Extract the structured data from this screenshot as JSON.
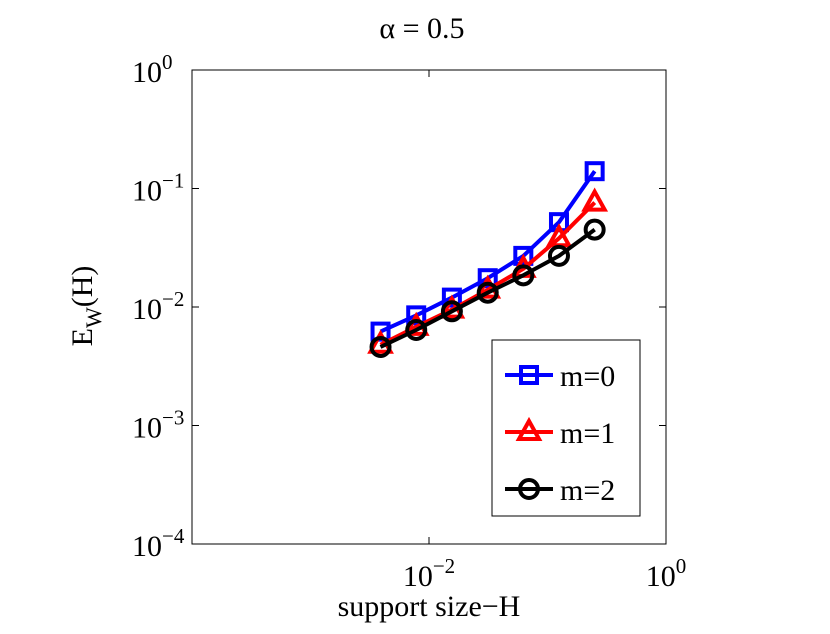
{
  "chart_data": {
    "type": "line",
    "title": "α = 0.5",
    "xlabel": "support size−H",
    "ylabel_base": "E",
    "ylabel_sub": "W",
    "ylabel_tail": "(H)",
    "xscale": "log",
    "yscale": "log",
    "xlim": [
      0.0001,
      1
    ],
    "ylim": [
      0.0001,
      1
    ],
    "x_ticks": [
      {
        "value": 0.01,
        "base": "10",
        "exp": "−2"
      },
      {
        "value": 1,
        "base": "10",
        "exp": "0"
      }
    ],
    "y_ticks": [
      {
        "value": 0.0001,
        "base": "10",
        "exp": "−4"
      },
      {
        "value": 0.001,
        "base": "10",
        "exp": "−3"
      },
      {
        "value": 0.01,
        "base": "10",
        "exp": "−2"
      },
      {
        "value": 0.1,
        "base": "10",
        "exp": "−1"
      },
      {
        "value": 1,
        "base": "10",
        "exp": "0"
      }
    ],
    "grid": false,
    "legend_position": "bottom-right",
    "x": [
      0.0039,
      0.0078,
      0.0156,
      0.0313,
      0.0625,
      0.125,
      0.25
    ],
    "series": [
      {
        "name": "m=0",
        "color": "#0000ff",
        "marker": "square",
        "values": [
          0.0062,
          0.0085,
          0.012,
          0.0175,
          0.027,
          0.052,
          0.14
        ]
      },
      {
        "name": "m=1",
        "color": "#ff0000",
        "marker": "triangle",
        "values": [
          0.0048,
          0.0068,
          0.0095,
          0.014,
          0.021,
          0.038,
          0.076
        ]
      },
      {
        "name": "m=2",
        "color": "#000000",
        "marker": "circle",
        "values": [
          0.0046,
          0.0064,
          0.0092,
          0.0132,
          0.0185,
          0.027,
          0.045
        ]
      }
    ]
  }
}
